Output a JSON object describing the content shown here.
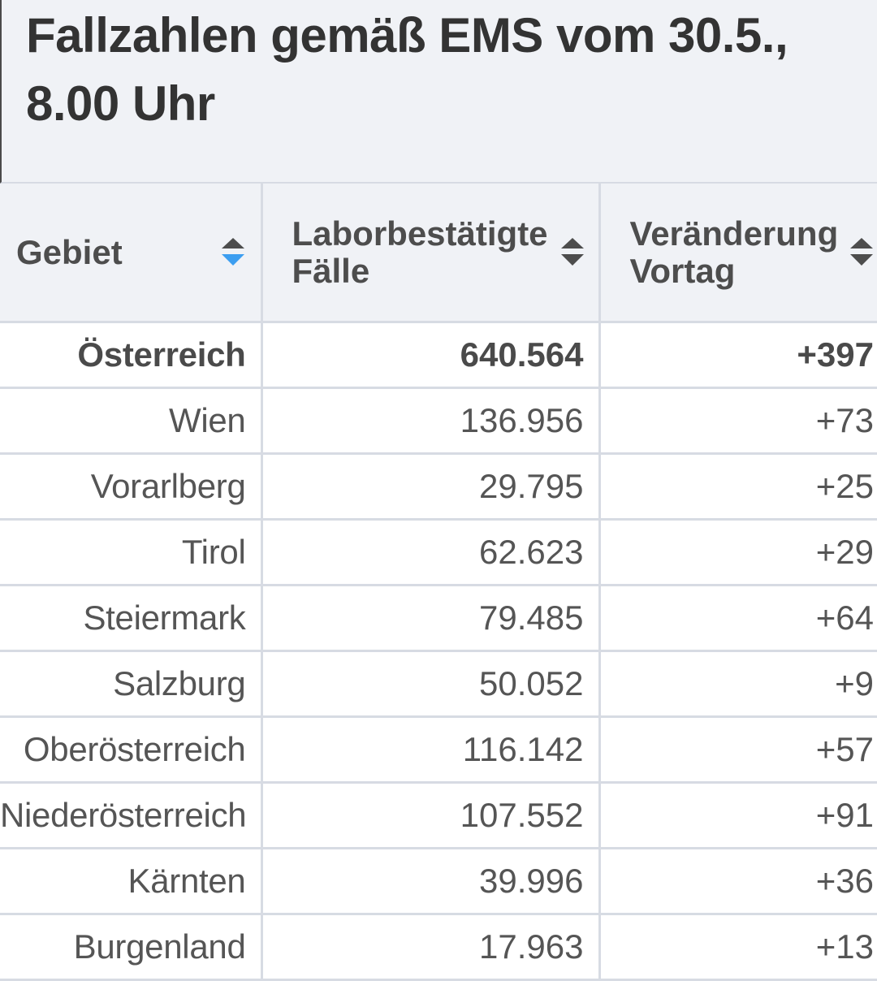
{
  "title": "Fallzahlen gemäß EMS vom 30.5., 8.00 Uhr",
  "colors": {
    "header_bg": "#f0f2f6",
    "grid_line": "#d7dbe3",
    "sort_active": "#3c9ef0",
    "sort_inactive": "#4d4d4d",
    "text": "#555555"
  },
  "table": {
    "columns": [
      {
        "label": "Gebiet",
        "sort_icon": "sort-icon-active-asc"
      },
      {
        "label": "Laborbestätigte Fälle",
        "sort_icon": "sort-icon"
      },
      {
        "label": "Veränderung Vortag",
        "sort_icon": "sort-icon"
      }
    ],
    "rows": [
      {
        "gebiet": "Österreich",
        "faelle": "640.564",
        "veraenderung": "+397",
        "total": true
      },
      {
        "gebiet": "Wien",
        "faelle": "136.956",
        "veraenderung": "+73"
      },
      {
        "gebiet": "Vorarlberg",
        "faelle": "29.795",
        "veraenderung": "+25"
      },
      {
        "gebiet": "Tirol",
        "faelle": "62.623",
        "veraenderung": "+29"
      },
      {
        "gebiet": "Steiermark",
        "faelle": "79.485",
        "veraenderung": "+64"
      },
      {
        "gebiet": "Salzburg",
        "faelle": "50.052",
        "veraenderung": "+9"
      },
      {
        "gebiet": "Oberösterreich",
        "faelle": "116.142",
        "veraenderung": "+57"
      },
      {
        "gebiet": "Niederösterreich",
        "faelle": "107.552",
        "veraenderung": "+91"
      },
      {
        "gebiet": "Kärnten",
        "faelle": "39.996",
        "veraenderung": "+36"
      },
      {
        "gebiet": "Burgenland",
        "faelle": "17.963",
        "veraenderung": "+13"
      }
    ]
  }
}
